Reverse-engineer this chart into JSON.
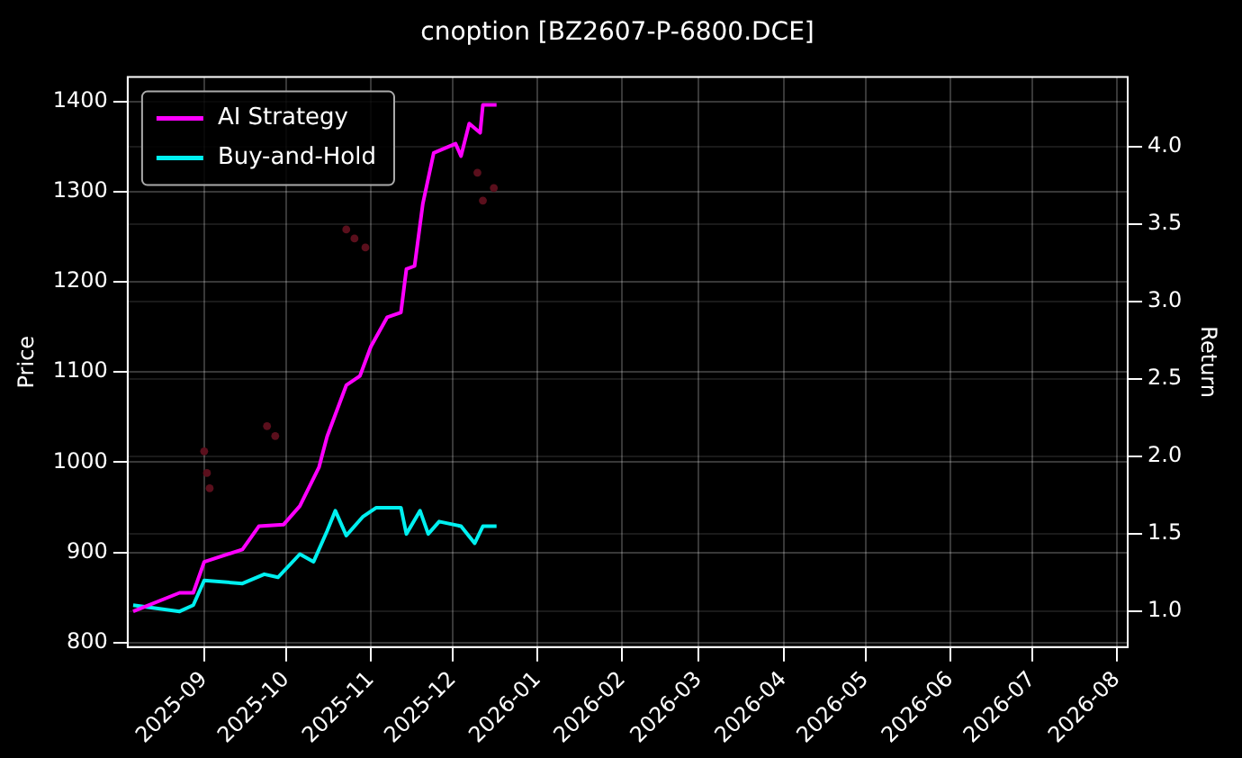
{
  "chart_data": {
    "type": "line",
    "title": "cnoption [BZ2607-P-6800.DCE]",
    "ylabel": "Price",
    "y2label": "Return",
    "xlim": [
      "2025-08-04",
      "2026-08-05"
    ],
    "xticks": [
      {
        "value": "2025-09-01",
        "label": "2025-09"
      },
      {
        "value": "2025-10-01",
        "label": "2025-10"
      },
      {
        "value": "2025-11-01",
        "label": "2025-11"
      },
      {
        "value": "2025-12-01",
        "label": "2025-12"
      },
      {
        "value": "2026-01-01",
        "label": "2026-01"
      },
      {
        "value": "2026-02-01",
        "label": "2026-02"
      },
      {
        "value": "2026-03-01",
        "label": "2026-03"
      },
      {
        "value": "2026-04-01",
        "label": "2026-04"
      },
      {
        "value": "2026-05-01",
        "label": "2026-05"
      },
      {
        "value": "2026-06-01",
        "label": "2026-06"
      },
      {
        "value": "2026-07-01",
        "label": "2026-07"
      },
      {
        "value": "2026-08-01",
        "label": "2026-08"
      }
    ],
    "ylim": [
      795,
      1427
    ],
    "yticks": [
      800,
      900,
      1000,
      1100,
      1200,
      1300,
      1400
    ],
    "y2lim": [
      0.77,
      4.45
    ],
    "y2ticks": [
      {
        "value": 1,
        "label": "1.0"
      },
      {
        "value": 1.5,
        "label": "1.5"
      },
      {
        "value": 2,
        "label": "2.0"
      },
      {
        "value": 2.5,
        "label": "2.5"
      },
      {
        "value": 3,
        "label": "3.0"
      },
      {
        "value": 3.5,
        "label": "3.5"
      },
      {
        "value": 4,
        "label": "4.0"
      }
    ],
    "grid": true,
    "legend": "top left",
    "series": [
      {
        "type": "scatter",
        "color": "#5a0f1c",
        "x": [
          "2025-09-01",
          "2025-09-02",
          "2025-09-03",
          "2025-09-24",
          "2025-09-27",
          "2025-10-23",
          "2025-10-26",
          "2025-10-30",
          "2025-12-10",
          "2025-12-12",
          "2025-12-16"
        ],
        "values": [
          1012,
          988,
          971,
          1040,
          1029,
          1258,
          1248,
          1238,
          1321,
          1290,
          1304
        ]
      },
      {
        "name": "AI Strategy",
        "color": "#ff00ff",
        "axis": "y2",
        "x": [
          "2025-08-06",
          "2025-08-23",
          "2025-08-28",
          "2025-09-01",
          "2025-09-15",
          "2025-09-21",
          "2025-09-30",
          "2025-10-06",
          "2025-10-13",
          "2025-10-16",
          "2025-10-23",
          "2025-10-28",
          "2025-11-01",
          "2025-11-07",
          "2025-11-12",
          "2025-11-14",
          "2025-11-17",
          "2025-11-20",
          "2025-11-24",
          "2025-12-02",
          "2025-12-04",
          "2025-12-07",
          "2025-12-11",
          "2025-12-12",
          "2025-12-17"
        ],
        "values": [
          1.0,
          1.12,
          1.12,
          1.32,
          1.4,
          1.55,
          1.56,
          1.68,
          1.93,
          2.13,
          2.46,
          2.52,
          2.71,
          2.9,
          2.93,
          3.21,
          3.23,
          3.63,
          3.96,
          4.02,
          3.94,
          4.15,
          4.09,
          4.27,
          4.27
        ]
      },
      {
        "name": "Buy-and-Hold",
        "color": "#00f0f0",
        "axis": "y2",
        "x": [
          "2025-08-06",
          "2025-08-23",
          "2025-08-28",
          "2025-09-01",
          "2025-09-15",
          "2025-09-23",
          "2025-09-28",
          "2025-10-06",
          "2025-10-11",
          "2025-10-16",
          "2025-10-19",
          "2025-10-23",
          "2025-10-29",
          "2025-11-03",
          "2025-11-12",
          "2025-11-14",
          "2025-11-19",
          "2025-11-22",
          "2025-11-26",
          "2025-12-04",
          "2025-12-09",
          "2025-12-12",
          "2025-12-17"
        ],
        "values": [
          1.04,
          1.0,
          1.04,
          1.2,
          1.18,
          1.24,
          1.22,
          1.37,
          1.32,
          1.52,
          1.65,
          1.49,
          1.61,
          1.67,
          1.67,
          1.5,
          1.65,
          1.5,
          1.58,
          1.55,
          1.44,
          1.55,
          1.55
        ]
      }
    ]
  }
}
